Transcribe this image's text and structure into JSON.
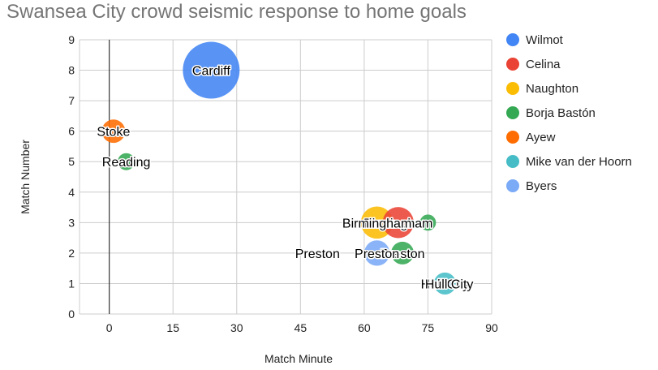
{
  "chart_data": {
    "type": "bubble",
    "title": "Swansea City crowd seismic response to home goals",
    "xlabel": "Match Minute",
    "ylabel": "Match Number",
    "xlim": [
      -7,
      90
    ],
    "ylim": [
      0,
      9
    ],
    "xticks": [
      0,
      15,
      30,
      45,
      60,
      75,
      90
    ],
    "yticks": [
      0,
      1,
      2,
      3,
      4,
      5,
      6,
      7,
      8,
      9
    ],
    "grid": true,
    "legend_position": "right",
    "series": [
      {
        "name": "Wilmot",
        "color": "#4285f4",
        "points": [
          {
            "x": 24,
            "y": 8,
            "size": 100,
            "label": "Cardiff"
          }
        ]
      },
      {
        "name": "Celina",
        "color": "#ea4335",
        "points": [
          {
            "x": 68,
            "y": 3,
            "size": 30,
            "label": "Birmingham"
          }
        ]
      },
      {
        "name": "Naughton",
        "color": "#fbbc04",
        "points": [
          {
            "x": 63,
            "y": 3,
            "size": 32,
            "label": "Birmingham"
          }
        ]
      },
      {
        "name": "Borja Bastón",
        "color": "#34a853",
        "points": [
          {
            "x": 4,
            "y": 5,
            "size": 9,
            "label": "Reading"
          },
          {
            "x": 75,
            "y": 3,
            "size": 8,
            "label": ""
          },
          {
            "x": 49,
            "y": 2,
            "size": 1,
            "label": "Preston"
          },
          {
            "x": 69,
            "y": 2,
            "size": 16,
            "label": "Preston"
          }
        ]
      },
      {
        "name": "Ayew",
        "color": "#ff6d01",
        "points": [
          {
            "x": 1,
            "y": 6,
            "size": 17,
            "label": "Stoke"
          }
        ]
      },
      {
        "name": "Mike van der Hoorn",
        "color": "#46bdc6",
        "points": [
          {
            "x": 79,
            "y": 1,
            "size": 15,
            "label": "Hull City"
          }
        ]
      },
      {
        "name": "Byers",
        "color": "#7baaf7",
        "points": [
          {
            "x": 63,
            "y": 2,
            "size": 20,
            "label": "Preston"
          },
          {
            "x": 80,
            "y": 1,
            "size": 0,
            "label": "Hull City"
          }
        ]
      }
    ]
  }
}
